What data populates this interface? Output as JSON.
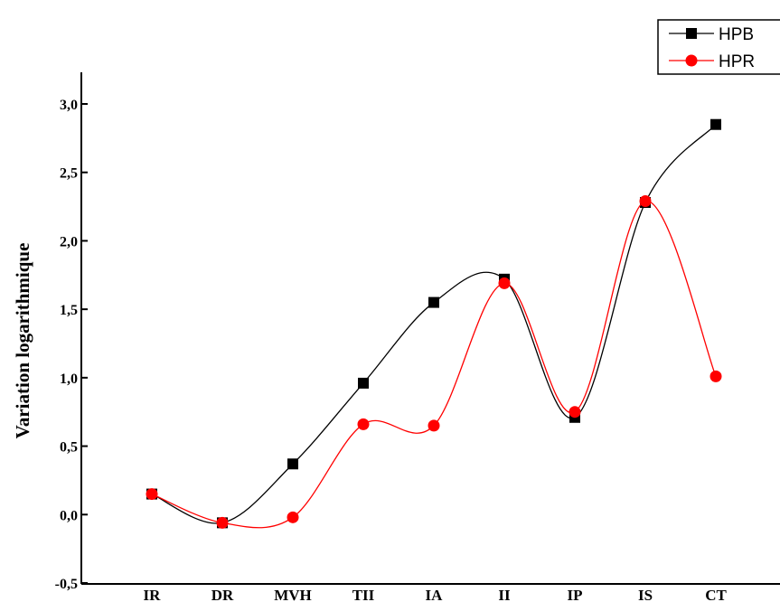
{
  "chart_data": {
    "type": "line",
    "categories": [
      "IR",
      "DR",
      "MVH",
      "TII",
      "IA",
      "II",
      "IP",
      "IS",
      "CT"
    ],
    "series": [
      {
        "name": "HPB",
        "color": "#000000",
        "marker": "square",
        "values": [
          0.15,
          -0.06,
          0.37,
          0.96,
          1.55,
          1.72,
          0.71,
          2.28,
          2.85
        ]
      },
      {
        "name": "HPR",
        "color": "#ff0000",
        "marker": "circle",
        "values": [
          0.15,
          -0.06,
          -0.02,
          0.66,
          0.65,
          1.69,
          0.75,
          2.29,
          1.01
        ]
      }
    ],
    "ylabel": "Variation logarithmique",
    "yticks": [
      "-0,5",
      "0,0",
      "0,5",
      "1,0",
      "1,5",
      "2,0",
      "2,5",
      "3,0"
    ],
    "ylim": [
      -0.5,
      3.0
    ],
    "grid": false,
    "legend_position": "top-right"
  }
}
